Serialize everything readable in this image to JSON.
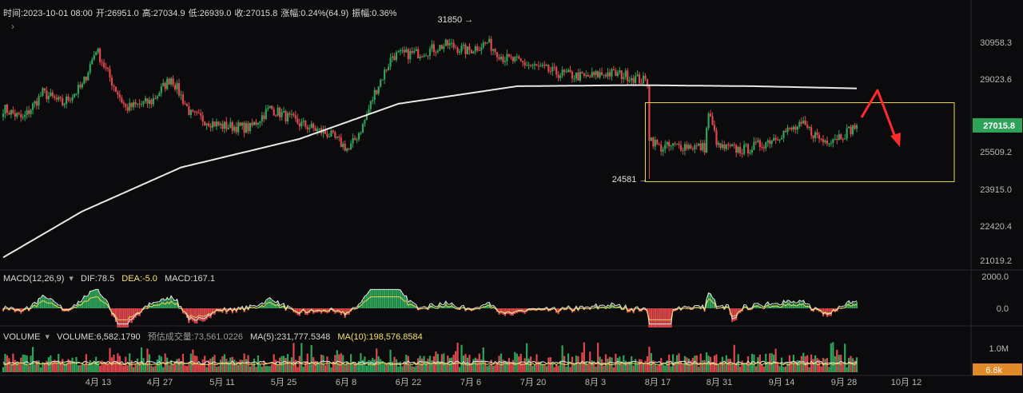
{
  "header": {
    "time": "时间:2023-10-01 08:00",
    "open": "开:26951.0",
    "high": "高:27034.9",
    "low": "低:26939.0",
    "close": "收:27015.8",
    "change": "涨幅:0.24%(64.9)",
    "amplitude": "振幅:0.36%",
    "expand_icon": "chevron-right-icon"
  },
  "colors": {
    "up": "#2fa35a",
    "down": "#e0474c",
    "ma": "#e8e8e8",
    "box": "#e8d84a",
    "arrow": "#ff2a2a",
    "dif": "#e8e8e8",
    "dea": "#e9d356"
  },
  "chart_data": {
    "type": "candlestick",
    "price_axis": {
      "ticks": [
        "30958.3",
        "29023.6",
        "25509.2",
        "23915.0",
        "22420.4",
        "21019.2"
      ],
      "range": [
        20500,
        32000
      ]
    },
    "current_price": "27015.8",
    "annotations": {
      "high_label": "31850",
      "low_label": "24581"
    },
    "x_tick_labels": [
      "4月 13",
      "4月 27",
      "5月 11",
      "5月 25",
      "6月 8",
      "6月 22",
      "7月 6",
      "7月 20",
      "8月 3",
      "8月 17",
      "8月 31",
      "9月 14",
      "9月 28",
      "10月 12"
    ],
    "close_anchors": [
      [
        0,
        27800
      ],
      [
        10,
        27300
      ],
      [
        20,
        28500
      ],
      [
        30,
        28000
      ],
      [
        40,
        28800
      ],
      [
        47,
        30500
      ],
      [
        55,
        29000
      ],
      [
        62,
        27800
      ],
      [
        75,
        28100
      ],
      [
        85,
        29200
      ],
      [
        95,
        27500
      ],
      [
        110,
        27000
      ],
      [
        125,
        26900
      ],
      [
        135,
        27800
      ],
      [
        150,
        27100
      ],
      [
        165,
        26600
      ],
      [
        175,
        25900
      ],
      [
        182,
        27000
      ],
      [
        188,
        28500
      ],
      [
        197,
        30200
      ],
      [
        210,
        30300
      ],
      [
        225,
        30700
      ],
      [
        235,
        30400
      ],
      [
        245,
        30800
      ],
      [
        253,
        30100
      ],
      [
        265,
        29800
      ],
      [
        280,
        29400
      ],
      [
        295,
        29200
      ],
      [
        305,
        29400
      ],
      [
        315,
        29300
      ],
      [
        326,
        29000
      ],
      [
        327,
        26500
      ],
      [
        332,
        26000
      ],
      [
        345,
        26100
      ],
      [
        355,
        26000
      ],
      [
        357,
        27600
      ],
      [
        362,
        26000
      ],
      [
        375,
        25900
      ],
      [
        385,
        26200
      ],
      [
        395,
        26700
      ],
      [
        405,
        27000
      ],
      [
        415,
        26300
      ],
      [
        425,
        26600
      ],
      [
        432,
        27015.8
      ]
    ],
    "ma200_anchors": [
      [
        0,
        21000
      ],
      [
        40,
        23100
      ],
      [
        90,
        25100
      ],
      [
        150,
        26400
      ],
      [
        200,
        28000
      ],
      [
        260,
        28800
      ],
      [
        320,
        28850
      ],
      [
        380,
        28800
      ],
      [
        432,
        28700
      ]
    ],
    "macd": {
      "label": "MACD(12,26,9)",
      "dif": "DIF:78.5",
      "dea": "DEA:-5.0",
      "macd": "MACD:167.1",
      "axis_ticks": [
        "2000.0",
        "0.0"
      ]
    },
    "volume": {
      "label": "VOLUME",
      "value": "VOLUME:6,582.1790",
      "estimate": "预估成交量:73,561.0226",
      "ma5": "MA(5):231,777.5348",
      "ma10": "MA(10):198,576.8584",
      "axis_ticks": [
        "1.0M"
      ],
      "current": "6.6k"
    }
  }
}
